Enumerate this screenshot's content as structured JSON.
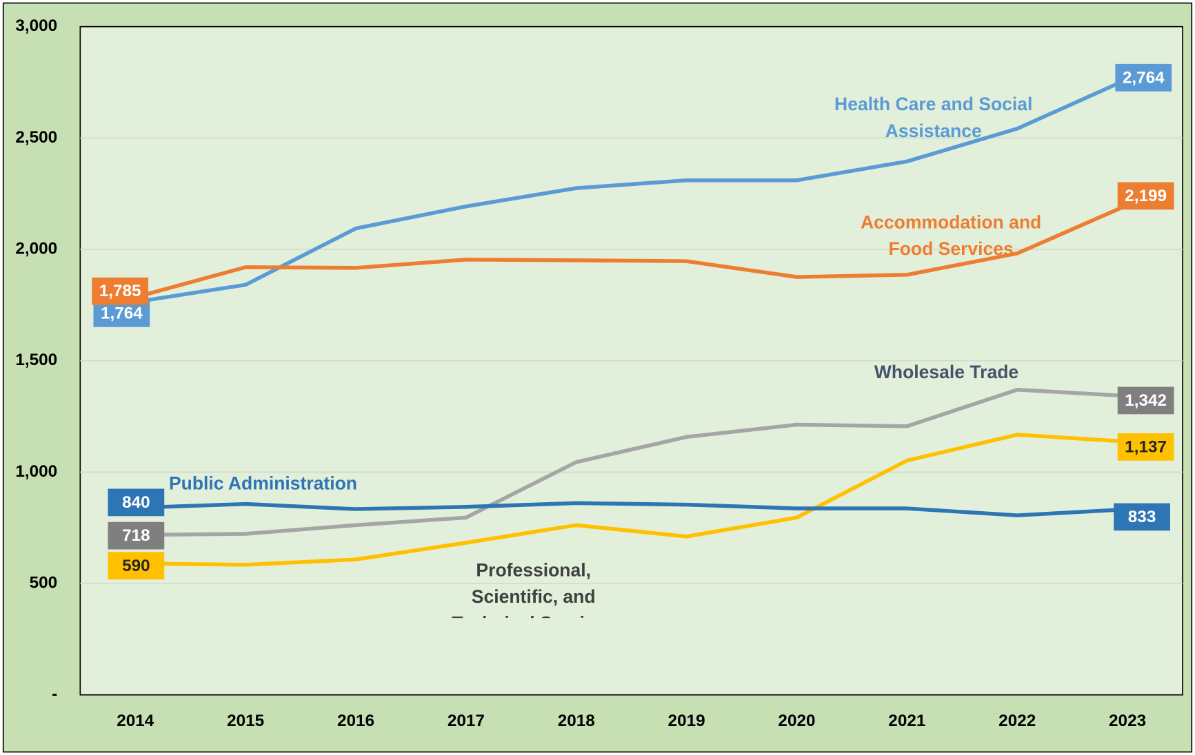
{
  "chart_data": {
    "type": "line",
    "categories": [
      "2014",
      "2015",
      "2016",
      "2017",
      "2018",
      "2019",
      "2020",
      "2021",
      "2022",
      "2023"
    ],
    "series": [
      {
        "name": "Health Care and Social Assistance",
        "color": "#5b9bd5",
        "label_color": "#5b9bd5",
        "values": [
          1764,
          1841,
          2094,
          2193,
          2275,
          2310,
          2310,
          2395,
          2542,
          2764
        ],
        "value_labels": [
          "1,764",
          null,
          null,
          null,
          null,
          null,
          null,
          null,
          null,
          "2,764"
        ]
      },
      {
        "name": "Accommodation and Food Services",
        "color": "#ed7d31",
        "label_color": "#ed7d31",
        "values": [
          1785,
          1920,
          1917,
          1954,
          1951,
          1947,
          1876,
          1886,
          1982,
          2199
        ],
        "value_labels": [
          "1,785",
          null,
          null,
          null,
          null,
          null,
          null,
          null,
          null,
          "2,199"
        ]
      },
      {
        "name": "Wholesale Trade",
        "color": "#a5a5a5",
        "label_color": "#44546a",
        "values": [
          718,
          723,
          762,
          796,
          1045,
          1158,
          1213,
          1206,
          1370,
          1342
        ],
        "value_labels": [
          "718",
          null,
          null,
          null,
          null,
          null,
          null,
          null,
          null,
          "1,342"
        ]
      },
      {
        "name": "Professional, Scientific, and Technical Services",
        "color": "#ffc000",
        "label_color": "#404040",
        "values": [
          590,
          584,
          608,
          683,
          762,
          711,
          796,
          1052,
          1168,
          1137
        ],
        "value_labels": [
          "590",
          null,
          null,
          null,
          null,
          null,
          null,
          null,
          null,
          "1,137"
        ]
      },
      {
        "name": "Public Administration",
        "color": "#2e75b6",
        "label_color": "#2e75b6",
        "values": [
          840,
          857,
          834,
          844,
          861,
          854,
          837,
          837,
          806,
          833
        ],
        "value_labels": [
          "840",
          null,
          null,
          null,
          null,
          null,
          null,
          null,
          null,
          "833"
        ]
      }
    ],
    "ylim": [
      0,
      3000
    ],
    "yticks": [
      {
        "value": 0,
        "label": "-"
      },
      500,
      {
        "value": 1000,
        "label": "1,000"
      },
      {
        "value": 1500,
        "label": "1,500"
      },
      {
        "value": 2000,
        "label": "2,000"
      },
      {
        "value": 2500,
        "label": "2,500"
      },
      {
        "value": 3000,
        "label": "3,000"
      }
    ],
    "grid": true
  }
}
